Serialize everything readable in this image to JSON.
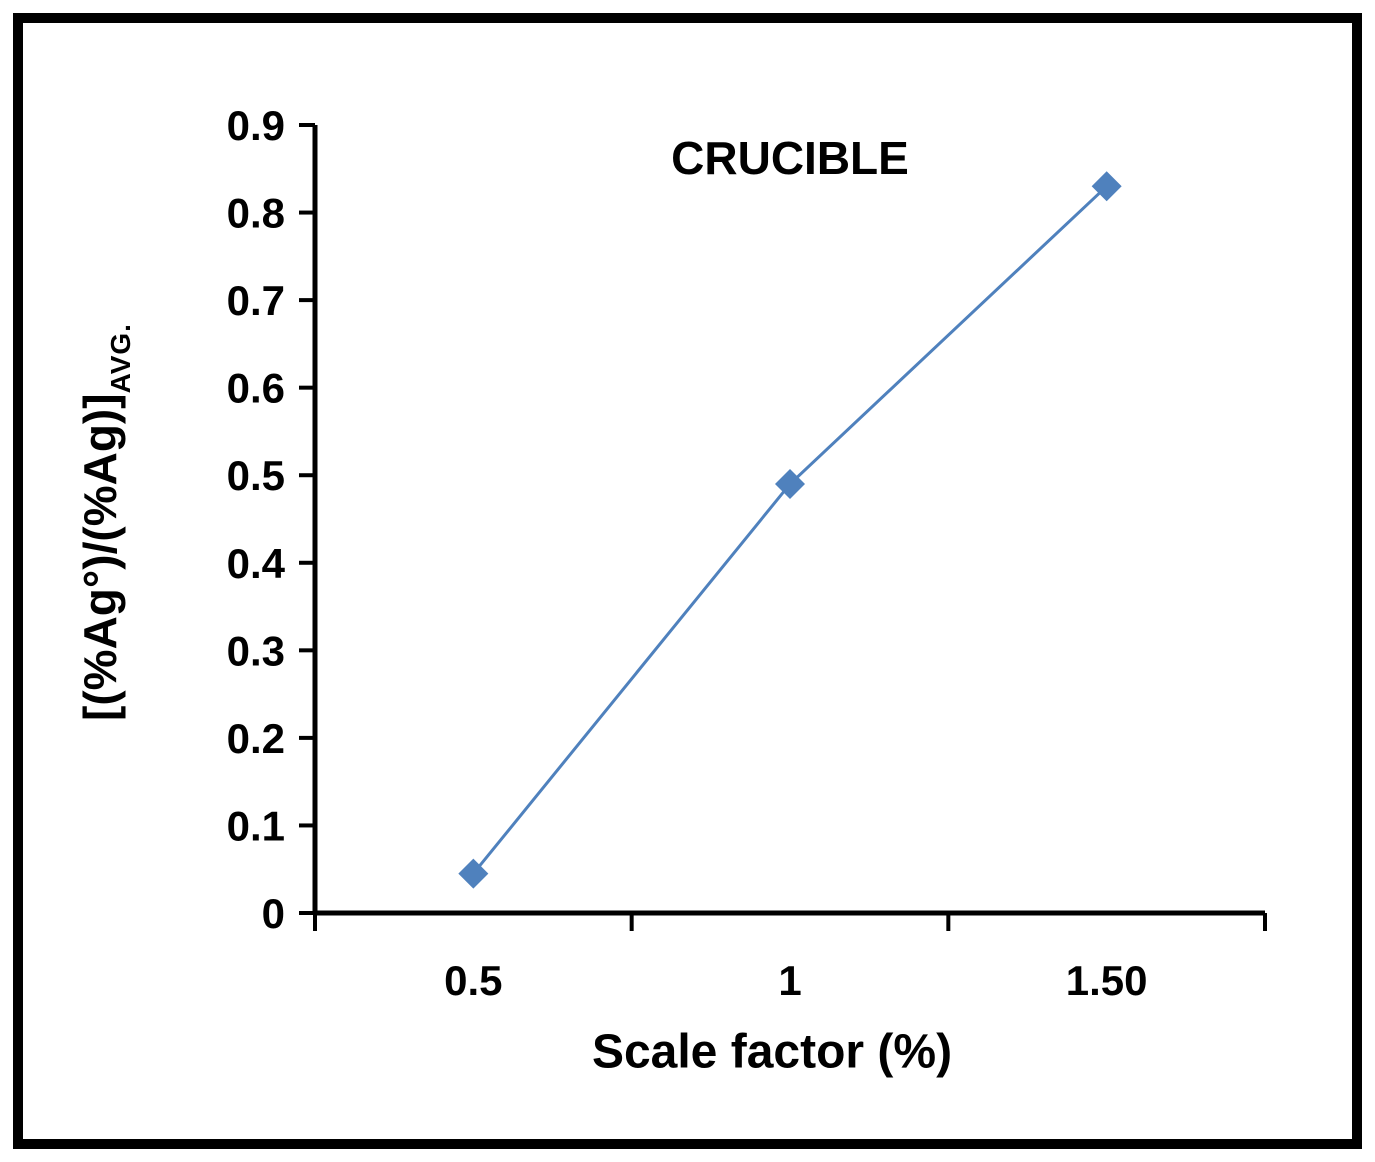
{
  "chart_data": {
    "type": "line",
    "title": "CRUCIBLE",
    "xlabel": "Scale factor (%)",
    "ylabel": "[(%Ag°)/(%Ag)]",
    "ylabel_subscript": "AVG.",
    "x": [
      0.5,
      1,
      1.5
    ],
    "values": [
      0.045,
      0.49,
      0.83
    ],
    "x_tick_labels": [
      "0.5",
      "1",
      "1.50"
    ],
    "y_ticks": [
      0,
      0.1,
      0.2,
      0.3,
      0.4,
      0.5,
      0.6,
      0.7,
      0.8,
      0.9
    ],
    "y_tick_labels": [
      "0",
      "0.1",
      "0.2",
      "0.3",
      "0.4",
      "0.5",
      "0.6",
      "0.7",
      "0.8",
      "0.9"
    ],
    "ylim": [
      0,
      0.9
    ],
    "line_color": "#4f81bd",
    "marker": "diamond",
    "grid": false,
    "legend": "none",
    "axis_color": "#000000"
  }
}
